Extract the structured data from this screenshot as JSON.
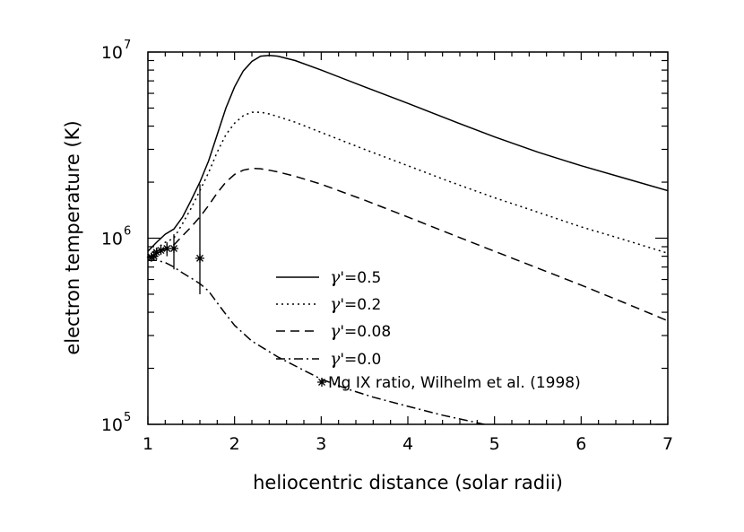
{
  "chart_data": {
    "type": "line",
    "title": "",
    "xlabel": "heliocentric distance (solar radii)",
    "ylabel": "electron temperature (K)",
    "xlim": [
      1,
      7
    ],
    "ylim": [
      100000,
      10000000
    ],
    "yscale": "log",
    "x_ticks": [
      "1",
      "2",
      "3",
      "4",
      "5",
      "6",
      "7"
    ],
    "y_ticks": [
      {
        "base": "10",
        "exp": "5"
      },
      {
        "base": "10",
        "exp": "6"
      },
      {
        "base": "10",
        "exp": "7"
      }
    ],
    "series": [
      {
        "name": "γ'=0.5",
        "gamma": "γ",
        "suffix": "'=0.5",
        "dash": "",
        "x": [
          1.0,
          1.1,
          1.2,
          1.3,
          1.4,
          1.5,
          1.6,
          1.7,
          1.8,
          1.9,
          2.0,
          2.1,
          2.2,
          2.3,
          2.4,
          2.5,
          2.7,
          3.0,
          3.5,
          4.0,
          4.5,
          5.0,
          5.5,
          6.0,
          6.5,
          7.0
        ],
        "y": [
          850000,
          950000,
          1050000,
          1120000,
          1300000,
          1600000,
          2000000,
          2600000,
          3600000,
          5000000,
          6500000,
          7900000,
          8900000,
          9500000,
          9600000,
          9500000,
          9000000,
          8000000,
          6500000,
          5300000,
          4300000,
          3500000,
          2900000,
          2450000,
          2100000,
          1800000
        ]
      },
      {
        "name": "γ'=0.2",
        "gamma": "γ",
        "suffix": "'=0.2",
        "dash": "2,4",
        "x": [
          1.0,
          1.1,
          1.2,
          1.3,
          1.4,
          1.5,
          1.6,
          1.7,
          1.8,
          1.9,
          2.0,
          2.1,
          2.2,
          2.3,
          2.4,
          2.5,
          2.7,
          3.0,
          3.5,
          4.0,
          4.5,
          5.0,
          5.5,
          6.0,
          6.5,
          7.0
        ],
        "y": [
          800000,
          880000,
          950000,
          1000000,
          1200000,
          1450000,
          1800000,
          2250000,
          2900000,
          3600000,
          4150000,
          4550000,
          4750000,
          4750000,
          4650000,
          4500000,
          4200000,
          3700000,
          3000000,
          2450000,
          2000000,
          1650000,
          1380000,
          1150000,
          980000,
          830000
        ]
      },
      {
        "name": "γ'=0.08",
        "gamma": "γ",
        "suffix": "'=0.08",
        "dash": "10,6",
        "x": [
          1.0,
          1.1,
          1.2,
          1.3,
          1.4,
          1.5,
          1.6,
          1.7,
          1.8,
          1.9,
          2.0,
          2.1,
          2.2,
          2.3,
          2.4,
          2.5,
          2.7,
          3.0,
          3.5,
          4.0,
          4.5,
          5.0,
          5.5,
          6.0,
          6.5,
          7.0
        ],
        "y": [
          780000,
          830000,
          880000,
          920000,
          1030000,
          1150000,
          1300000,
          1500000,
          1750000,
          2000000,
          2200000,
          2320000,
          2370000,
          2360000,
          2320000,
          2270000,
          2150000,
          1950000,
          1600000,
          1300000,
          1050000,
          850000,
          690000,
          560000,
          450000,
          360000
        ]
      },
      {
        "name": "γ'=0.0",
        "gamma": "γ",
        "suffix": "'=0.0",
        "dash": "10,4,2,4",
        "x": [
          1.0,
          1.1,
          1.2,
          1.3,
          1.4,
          1.5,
          1.6,
          1.7,
          1.8,
          1.9,
          2.0,
          2.2,
          2.5,
          2.8,
          3.0,
          3.3,
          3.6,
          4.0,
          4.4,
          4.8,
          5.0
        ],
        "y": [
          760000,
          760000,
          740000,
          700000,
          650000,
          610000,
          570000,
          520000,
          450000,
          390000,
          340000,
          280000,
          230000,
          195000,
          175000,
          155000,
          140000,
          125000,
          112000,
          102000,
          97000
        ]
      }
    ],
    "observations": {
      "name": "Mg IX ratio, Wilhelm et al. (1998)",
      "x": [
        1.04,
        1.07,
        1.1,
        1.15,
        1.22,
        1.3,
        1.6
      ],
      "y": [
        790000,
        800000,
        840000,
        860000,
        880000,
        880000,
        780000
      ],
      "err_low": [
        760000,
        770000,
        790000,
        820000,
        800000,
        680000,
        500000
      ],
      "err_high": [
        820000,
        860000,
        890000,
        900000,
        950000,
        1050000,
        1950000
      ]
    },
    "legend_position": "center"
  }
}
